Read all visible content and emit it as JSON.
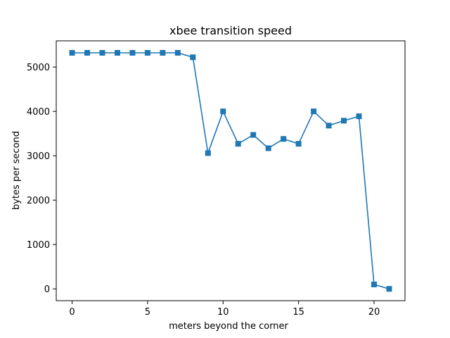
{
  "chart_data": {
    "type": "line",
    "title": "xbee transition speed",
    "xlabel": "meters beyond the corner",
    "ylabel": "bytes per second",
    "xlim": [
      -1.05,
      22.05
    ],
    "ylim": [
      -266,
      5590
    ],
    "xticks": [
      0,
      5,
      10,
      15,
      20
    ],
    "yticks": [
      0,
      1000,
      2000,
      3000,
      4000,
      5000
    ],
    "grid": false,
    "marker": "square",
    "color": "#1f77b4",
    "series": [
      {
        "x": [
          0,
          1,
          2,
          3,
          4,
          5,
          6,
          7,
          8,
          9,
          10,
          11,
          12,
          13,
          14,
          15,
          16,
          17,
          18,
          19,
          20,
          21
        ],
        "values": [
          5320,
          5320,
          5320,
          5320,
          5320,
          5320,
          5320,
          5320,
          5220,
          3060,
          4000,
          3270,
          3470,
          3170,
          3380,
          3270,
          4000,
          3680,
          3790,
          3890,
          100,
          0
        ]
      }
    ]
  }
}
